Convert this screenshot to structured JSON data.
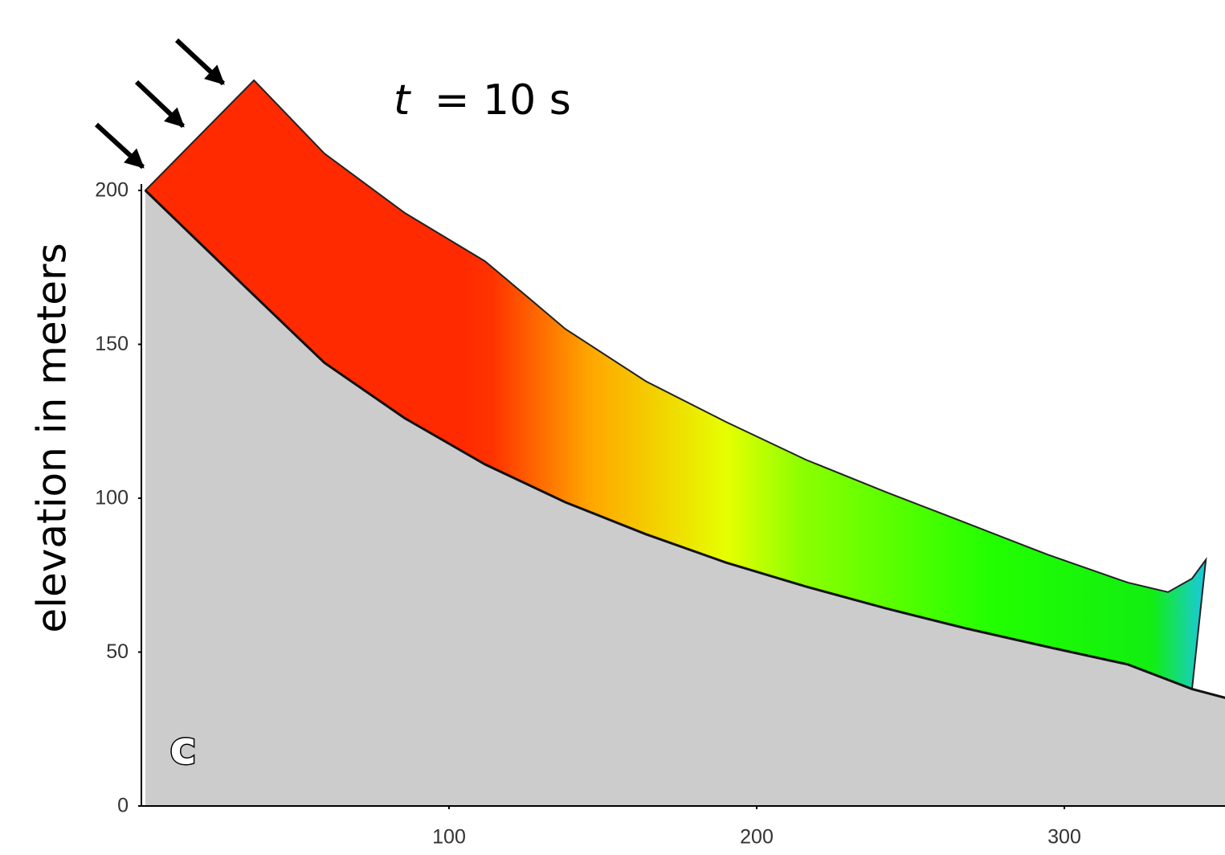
{
  "chart_data": {
    "type": "profile",
    "title_variable": "t",
    "title_rest": "= 10 s",
    "panel_label": "c",
    "y_label": "elevation in meters",
    "xlim": [
      0,
      354
    ],
    "ylim": [
      0,
      200
    ],
    "xticks": [
      100,
      200,
      300
    ],
    "yticks": [
      0,
      50,
      100,
      150,
      200
    ],
    "series": [
      {
        "name": "ground",
        "color": "#cccccc",
        "x": [
          1.3,
          33.4,
          59.5,
          85.6,
          111.7,
          137.8,
          164,
          190,
          216,
          242,
          268,
          294.5,
          320.6,
          341.5,
          354
        ],
        "values": [
          200,
          169,
          144,
          126,
          111,
          98.7,
          88.3,
          79.1,
          71.3,
          64.2,
          57.7,
          51.7,
          46,
          38,
          34.7
        ]
      },
      {
        "name": "flow",
        "colors": [
          "#ff2a00",
          "#ff2a00",
          "#ff3300",
          "#ffa500",
          "#e6ff00",
          "#8cff00",
          "#22ff00",
          "#11ee11",
          "#1ac8e0"
        ],
        "x": [
          1.3,
          36.6,
          59.5,
          85.6,
          111.7,
          126,
          137.8,
          164,
          190,
          216,
          242,
          268,
          294.5,
          320.6,
          333.7,
          341.5,
          346
        ],
        "values": [
          200,
          235.8,
          212,
          192.7,
          177,
          165,
          155,
          138,
          124.8,
          112.5,
          102,
          92,
          81.7,
          72.6,
          69.5,
          73.9,
          80
        ]
      }
    ]
  }
}
